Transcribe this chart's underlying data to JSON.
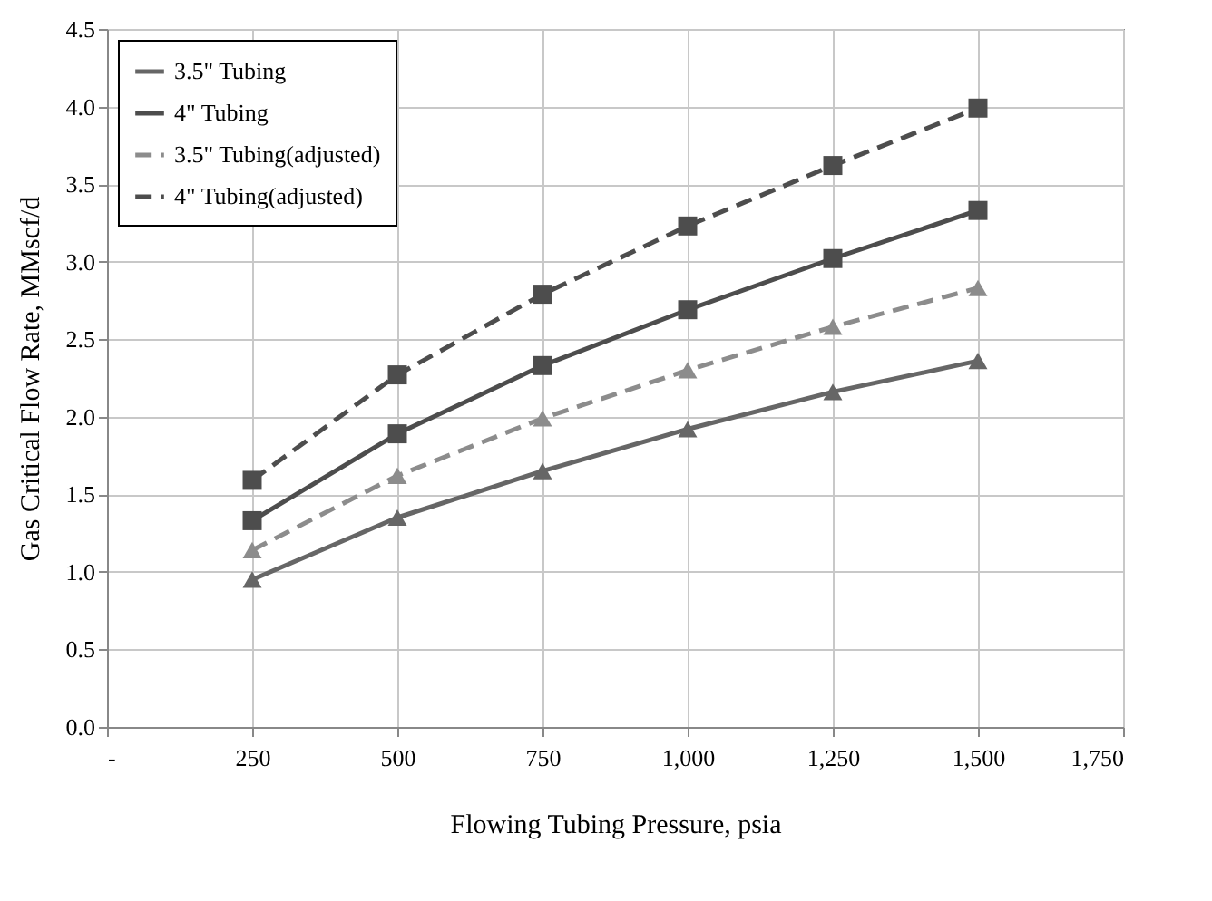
{
  "chart_data": {
    "type": "line",
    "xlabel": "Flowing Tubing Pressure, psia",
    "ylabel": "Gas Critical Flow Rate, MMscf/d",
    "x": [
      250,
      500,
      750,
      1000,
      1250,
      1500
    ],
    "series": [
      {
        "name": "3.5\" Tubing",
        "color": "#666666",
        "marker": "triangle",
        "line_style": "solid",
        "values": [
          0.95,
          1.35,
          1.65,
          1.92,
          2.16,
          2.36
        ]
      },
      {
        "name": "4\" Tubing",
        "color": "#4d4d4d",
        "marker": "square",
        "line_style": "solid",
        "values": [
          1.33,
          1.89,
          2.33,
          2.69,
          3.02,
          3.33
        ]
      },
      {
        "name": "3.5\" Tubing(adjusted)",
        "color": "#8c8c8c",
        "marker": "triangle",
        "line_style": "dashed",
        "values": [
          1.14,
          1.62,
          1.99,
          2.3,
          2.58,
          2.83
        ]
      },
      {
        "name": "4\" Tubing(adjusted)",
        "color": "#4d4d4d",
        "marker": "square",
        "line_style": "dashed",
        "values": [
          1.59,
          2.27,
          2.79,
          3.23,
          3.62,
          3.99
        ]
      }
    ],
    "xlim": [
      0,
      1750
    ],
    "xticks": [
      {
        "value": 0,
        "label": "-"
      },
      250,
      500,
      750,
      {
        "value": 1000,
        "label": "1,000"
      },
      {
        "value": 1250,
        "label": "1,250"
      },
      {
        "value": 1500,
        "label": "1,500"
      },
      {
        "value": 1750,
        "label": "1,750"
      }
    ],
    "ylim": [
      0,
      4.5
    ],
    "yticks": [
      {
        "value": 0,
        "label": "0.0"
      },
      0.5,
      {
        "value": 1,
        "label": "1.0"
      },
      1.5,
      {
        "value": 2,
        "label": "2.0"
      },
      2.5,
      {
        "value": 3,
        "label": "3.0"
      },
      3.5,
      {
        "value": 4,
        "label": "4.0"
      },
      4.5
    ],
    "grid": true,
    "legend": "top left"
  }
}
